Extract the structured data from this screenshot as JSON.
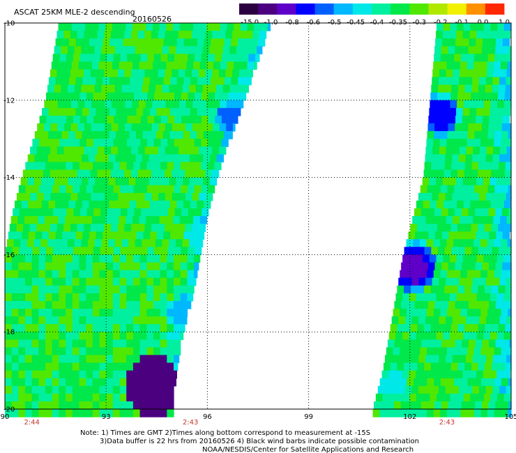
{
  "header": {
    "title": "ASCAT 25KM MLE-2 descending",
    "date": "20160526"
  },
  "colorbar": {
    "labels": [
      "-15.0",
      "-1.0",
      "-0.8",
      "-0.6",
      "-0.5",
      "-0.45",
      "-0.4",
      "-0.35",
      "-0.3",
      "-0.2",
      "-0.1",
      "0.0",
      "1.0"
    ],
    "colors": [
      "#2b0040",
      "#4b0080",
      "#5e00c8",
      "#0000ff",
      "#0060ff",
      "#00b8ff",
      "#00e8e8",
      "#00f0a0",
      "#00e84a",
      "#50e800",
      "#b0e800",
      "#f0f000",
      "#ff9000",
      "#ff2800"
    ]
  },
  "chart_data": {
    "type": "heatmap",
    "title": "ASCAT 25KM MLE-2 descending",
    "subtitle": "20160526",
    "x_ticks": [
      90,
      93,
      96,
      99,
      102,
      105
    ],
    "y_ticks": [
      -10,
      -12,
      -14,
      -16,
      -18,
      -20
    ],
    "xlim": [
      90,
      105
    ],
    "ylim": [
      -20,
      -10
    ],
    "grid": true,
    "colorbar_range": [
      -15.0,
      1.0
    ],
    "swaths": [
      {
        "name": "west",
        "left_edge": [
          [
            -10,
            91.6
          ],
          [
            -12,
            91.2
          ],
          [
            -14,
            90.5
          ],
          [
            -15,
            90.2
          ],
          [
            -16,
            90.0
          ],
          [
            -20,
            90.0
          ]
        ],
        "right_edge": [
          [
            -10,
            97.9
          ],
          [
            -11,
            97.5
          ],
          [
            -12,
            97.1
          ],
          [
            -13,
            96.7
          ],
          [
            -14,
            96.3
          ],
          [
            -15,
            96.0
          ],
          [
            -16,
            95.8
          ],
          [
            -17,
            95.6
          ],
          [
            -18,
            95.3
          ],
          [
            -19,
            95.1
          ],
          [
            -20,
            95.0
          ]
        ],
        "base_value": -0.32,
        "features": [
          {
            "lat": -12.4,
            "lon": 96.7,
            "value": -0.6,
            "radius": 0.5
          },
          {
            "lat": -19.4,
            "lon": 94.4,
            "value": -15.0,
            "radius": 0.8
          },
          {
            "lat": -17.5,
            "lon": 95.2,
            "value": -0.5,
            "radius": 0.5
          },
          {
            "lat": -15.5,
            "lon": 95.8,
            "value": -0.45,
            "radius": 0.4
          }
        ]
      },
      {
        "name": "east",
        "left_edge": [
          [
            -10,
            102.8
          ],
          [
            -12,
            102.6
          ],
          [
            -14,
            102.4
          ],
          [
            -15,
            102.1
          ],
          [
            -16,
            101.8
          ],
          [
            -17,
            101.6
          ],
          [
            -18,
            101.4
          ],
          [
            -19,
            101.2
          ],
          [
            -20,
            100.9
          ]
        ],
        "right_edge": [
          [
            -10,
            105.0
          ],
          [
            -20,
            105.0
          ]
        ],
        "base_value": -0.33,
        "features": [
          {
            "lat": -12.4,
            "lon": 102.9,
            "value": -0.8,
            "radius": 0.6
          },
          {
            "lat": -16.3,
            "lon": 102.1,
            "value": -1.0,
            "radius": 0.7
          },
          {
            "lat": -19.3,
            "lon": 101.5,
            "value": -0.45,
            "radius": 0.5
          }
        ]
      }
    ],
    "time_labels": [
      {
        "lon": 90.8,
        "text": "2:44"
      },
      {
        "lon": 95.5,
        "text": "2:43"
      },
      {
        "lon": 103.1,
        "text": "2:43"
      }
    ]
  },
  "notes": {
    "line1": "Note: 1) Times are GMT 2)Times along bottom correspond to measurement at -15S",
    "line2": "3)Data buffer is 22 hrs from 20160526 4) Black wind barbs indicate possible contamination",
    "line3": "NOAA/NESDIS/Center for Satellite Applications and Research"
  }
}
